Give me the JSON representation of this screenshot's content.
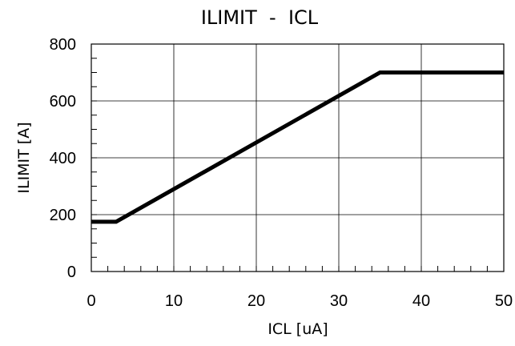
{
  "chart_data": {
    "type": "line",
    "title": "ILIMIT  -  ICL",
    "xlabel": "ICL [uA]",
    "ylabel": "ILIMIT [A]",
    "xlim": [
      0,
      50
    ],
    "ylim": [
      0,
      800
    ],
    "x_ticks": [
      0,
      10,
      20,
      30,
      40,
      50
    ],
    "y_ticks": [
      0,
      200,
      400,
      600,
      800
    ],
    "x_tick_labels": [
      "0",
      "10",
      "20",
      "30",
      "40",
      "50"
    ],
    "y_tick_labels": [
      "0",
      "200",
      "400",
      "600",
      "800"
    ],
    "grid": true,
    "series": [
      {
        "color": "#000000",
        "x": [
          0,
          3,
          35,
          50
        ],
        "y": [
          175,
          175,
          700,
          700
        ]
      }
    ]
  }
}
